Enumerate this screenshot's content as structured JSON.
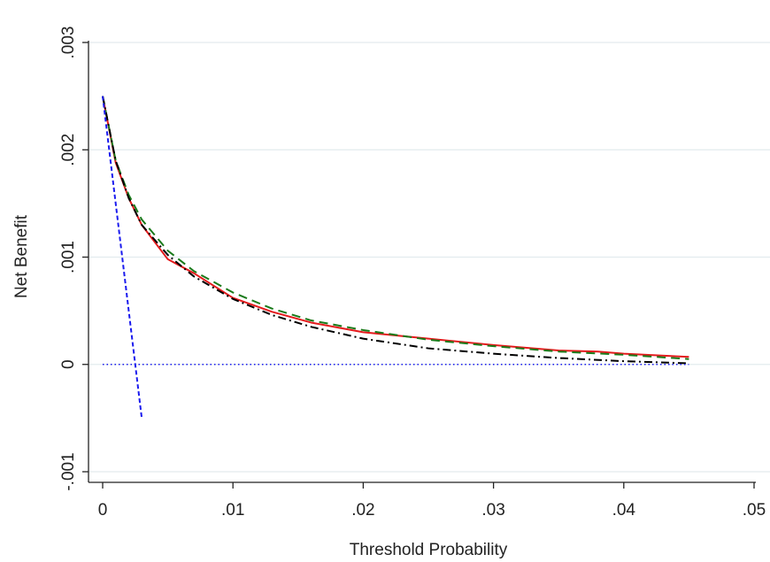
{
  "chart_data": {
    "type": "line",
    "title": "",
    "xlabel": "Threshold Probability",
    "ylabel": "Net Benefit",
    "xlim": [
      0,
      0.05
    ],
    "ylim": [
      -0.001,
      0.003
    ],
    "x_ticks": [
      {
        "value": 0,
        "label": "0"
      },
      {
        "value": 0.01,
        "label": ".01"
      },
      {
        "value": 0.02,
        "label": ".02"
      },
      {
        "value": 0.03,
        "label": ".03"
      },
      {
        "value": 0.04,
        "label": ".04"
      },
      {
        "value": 0.05,
        "label": ".05"
      }
    ],
    "y_ticks": [
      {
        "value": -0.001,
        "label": "-.001"
      },
      {
        "value": 0,
        "label": "0"
      },
      {
        "value": 0.001,
        "label": ".001"
      },
      {
        "value": 0.002,
        "label": ".002"
      },
      {
        "value": 0.003,
        "label": ".003"
      }
    ],
    "grid": "horizontal",
    "legend": "none",
    "series": [
      {
        "color": "#e41a1c",
        "dash": "solid",
        "x": [
          0.0,
          0.001,
          0.002,
          0.003,
          0.005,
          0.007,
          0.01,
          0.013,
          0.016,
          0.02,
          0.025,
          0.03,
          0.035,
          0.038,
          0.04,
          0.045
        ],
        "y": [
          0.0025,
          0.00188,
          0.00155,
          0.0013,
          0.00098,
          0.00085,
          0.00062,
          0.00049,
          0.00039,
          0.0003,
          0.00024,
          0.00018,
          0.00013,
          0.00012,
          0.0001,
          7e-05
        ]
      },
      {
        "color": "#1a7a1a",
        "dash": "long-dash",
        "x": [
          0.0,
          0.001,
          0.002,
          0.003,
          0.005,
          0.007,
          0.01,
          0.013,
          0.016,
          0.02,
          0.025,
          0.03,
          0.035,
          0.04,
          0.045
        ],
        "y": [
          0.0025,
          0.0019,
          0.00158,
          0.00135,
          0.00106,
          0.00087,
          0.00067,
          0.00052,
          0.00041,
          0.00032,
          0.00023,
          0.00017,
          0.00012,
          9e-05,
          5e-05
        ]
      },
      {
        "color": "#000000",
        "dash": "dash-dot",
        "x": [
          0.0,
          0.001,
          0.002,
          0.003,
          0.005,
          0.007,
          0.01,
          0.013,
          0.016,
          0.02,
          0.025,
          0.03,
          0.035,
          0.04,
          0.045
        ],
        "y": [
          0.0025,
          0.0019,
          0.00155,
          0.0013,
          0.00102,
          0.00082,
          0.00061,
          0.00046,
          0.00035,
          0.00024,
          0.00015,
          0.0001,
          6e-05,
          3e-05,
          1e-05
        ]
      },
      {
        "color": "#1a1aee",
        "dash": "short-dash",
        "x": [
          0.0,
          0.003
        ],
        "y": [
          0.0025,
          -0.0005
        ]
      },
      {
        "color": "#1a1aee",
        "dash": "dotted",
        "x": [
          0.0,
          0.045
        ],
        "y": [
          0.0,
          0.0
        ]
      }
    ]
  }
}
